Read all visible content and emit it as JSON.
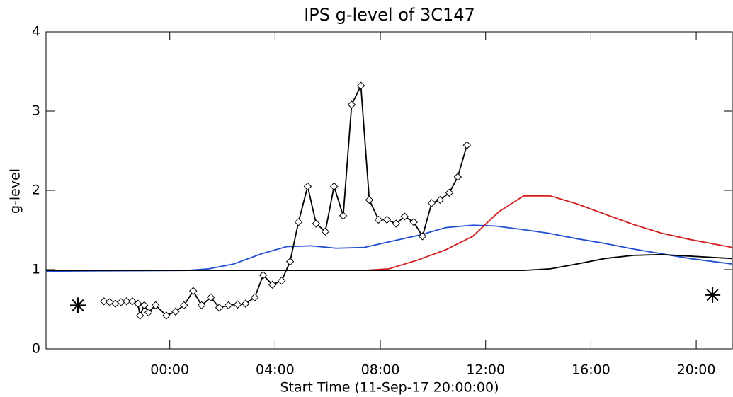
{
  "chart_data": {
    "type": "line",
    "title": "IPS g-level of 3C147",
    "xlabel": "Start Time (11-Sep-17 20:00:00)",
    "ylabel": "g-level",
    "xlim": [
      -0.7,
      25.37
    ],
    "ylim": [
      0,
      4
    ],
    "xticks": [
      {
        "value": 4,
        "label": "00:00"
      },
      {
        "value": 8,
        "label": "04:00"
      },
      {
        "value": 12,
        "label": "08:00"
      },
      {
        "value": 16,
        "label": "12:00"
      },
      {
        "value": 20,
        "label": "16:00"
      },
      {
        "value": 24,
        "label": "20:00"
      }
    ],
    "yticks": [
      0,
      1,
      2,
      3,
      4
    ],
    "series": [
      {
        "color": "#1f4fd0",
        "marker": "none",
        "x": [
          -0.7,
          4.67,
          5.48,
          6.42,
          7.49,
          8.44,
          9.38,
          10.32,
          11.39,
          12.47,
          13.54,
          14.48,
          15.51,
          16.37,
          17.31,
          18.38,
          19.46,
          20.53,
          21.61,
          22.68,
          23.76,
          25.37
        ],
        "values": [
          0.98,
          0.99,
          1.01,
          1.07,
          1.2,
          1.29,
          1.3,
          1.27,
          1.28,
          1.36,
          1.44,
          1.53,
          1.56,
          1.55,
          1.51,
          1.46,
          1.39,
          1.33,
          1.26,
          1.2,
          1.14,
          1.07
        ]
      },
      {
        "color": "#d01f1f",
        "marker": "none",
        "x": [
          -0.7,
          11.39,
          12.33,
          13.41,
          14.48,
          15.51,
          16.5,
          17.44,
          18.46,
          19.46,
          20.53,
          21.61,
          22.68,
          23.76,
          25.37
        ],
        "values": [
          0.99,
          0.99,
          1.01,
          1.12,
          1.25,
          1.42,
          1.73,
          1.93,
          1.93,
          1.83,
          1.7,
          1.57,
          1.46,
          1.38,
          1.28
        ]
      },
      {
        "color": "#000000",
        "marker": "none",
        "x": [
          -0.7,
          17.44,
          18.46,
          19.46,
          20.53,
          21.61,
          22.68,
          23.76,
          25.37
        ],
        "values": [
          0.99,
          0.99,
          1.01,
          1.07,
          1.14,
          1.18,
          1.19,
          1.17,
          1.14
        ]
      },
      {
        "color": "#000000",
        "marker": "diamond",
        "x": [
          1.5,
          1.72,
          1.93,
          2.15,
          2.36,
          2.58,
          2.79,
          2.87,
          3.03,
          3.19,
          3.46,
          3.87,
          4.22,
          4.54,
          4.89,
          5.21,
          5.56,
          5.88,
          6.23,
          6.58,
          6.88,
          7.23,
          7.55,
          7.9,
          8.25,
          8.57,
          8.89,
          9.24,
          9.56,
          9.91,
          10.24,
          10.59,
          10.91,
          11.26,
          11.58,
          11.93,
          12.25,
          12.6,
          12.92,
          13.27,
          13.6,
          13.95,
          14.27,
          14.62,
          14.94,
          15.29
        ],
        "values": [
          0.6,
          0.59,
          0.57,
          0.59,
          0.6,
          0.6,
          0.57,
          0.42,
          0.55,
          0.46,
          0.55,
          0.42,
          0.47,
          0.55,
          0.73,
          0.55,
          0.65,
          0.52,
          0.55,
          0.56,
          0.57,
          0.65,
          0.93,
          0.81,
          0.86,
          1.1,
          1.6,
          2.05,
          1.58,
          1.48,
          2.05,
          1.68,
          3.08,
          3.32,
          1.88,
          1.63,
          1.63,
          1.58,
          1.67,
          1.6,
          1.42,
          1.84,
          1.88,
          1.97,
          2.17,
          2.57
        ]
      },
      {
        "color": "#000000",
        "marker": "asterisk",
        "line": false,
        "x": [
          0.51,
          24.62
        ],
        "values": [
          0.55,
          0.68
        ]
      }
    ]
  }
}
